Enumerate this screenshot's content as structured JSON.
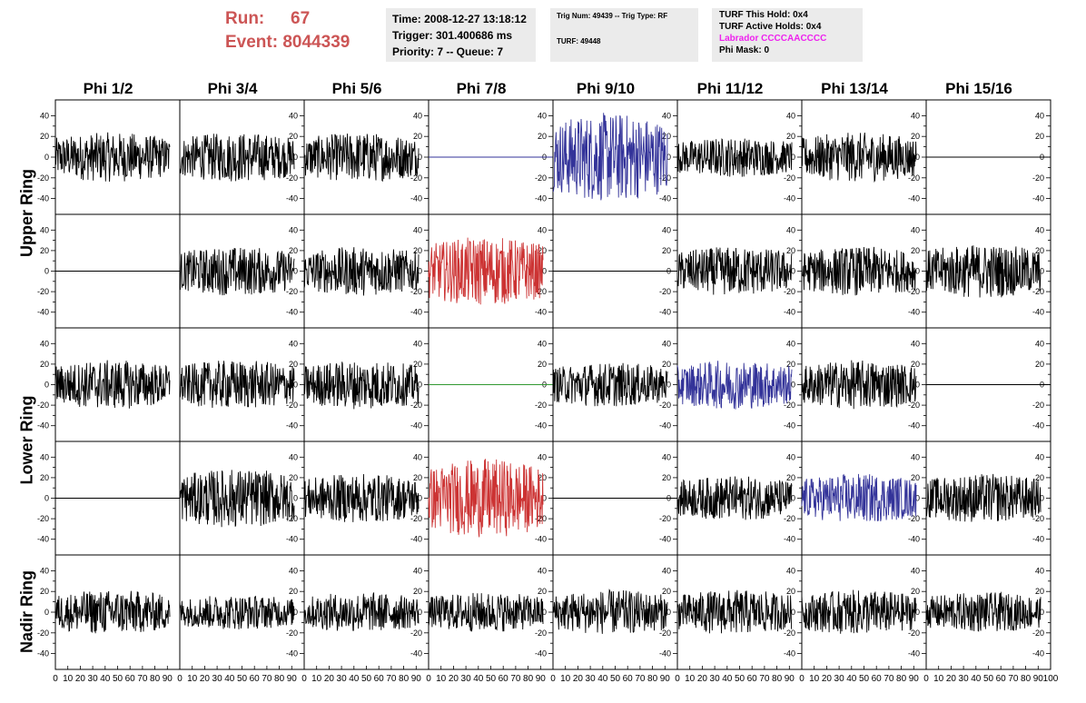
{
  "header": {
    "run_label": "Run:",
    "run_value": "67",
    "event_label": "Event:",
    "event_value": "8044339",
    "time": "Time: 2008-12-27 13:18:12",
    "trigger": "Trigger: 301.400686 ms",
    "priority": "Priority: 7 -- Queue: 7",
    "trig_num": "Trig Num: 49439 -- Trig Type: RF",
    "turf": "TURF: 49448",
    "turf_this_hold": "TURF This Hold: 0x4",
    "turf_active_holds": "TURF Active Holds: 0x4",
    "labrador": "Labrador CCCCAACCCC",
    "phi_mask": "Phi Mask: 0"
  },
  "colors": {
    "run_text": "#cc5555",
    "labrador_text": "#ee22ee",
    "info_bg": "#ebebeb",
    "trace_default": "#000000",
    "trace_blue": "#333399",
    "trace_red": "#cc3333",
    "trace_green": "#339933"
  },
  "columns": [
    "Phi 1/2",
    "Phi 3/4",
    "Phi 5/6",
    "Phi 7/8",
    "Phi 9/10",
    "Phi 11/12",
    "Phi 13/14",
    "Phi 15/16"
  ],
  "rings": [
    {
      "label": "Upper Ring",
      "rows": 2
    },
    {
      "label": "Lower Ring",
      "rows": 2
    },
    {
      "label": "Nadir Ring",
      "rows": 1
    }
  ],
  "chart_data": {
    "type": "line",
    "layout": "grid of 8 columns x 5 rows of waveform panels",
    "xlim": [
      0,
      100
    ],
    "ylim": [
      -50,
      50
    ],
    "x_ticks": [
      "0",
      "10",
      "20",
      "30",
      "40",
      "50",
      "60",
      "70",
      "80",
      "90",
      "100"
    ],
    "y_ticks": [
      "-40",
      "-20",
      "0",
      "20",
      "40"
    ],
    "panels": [
      [
        {
          "color": "black",
          "amplitude": 20,
          "flat": false
        },
        {
          "color": "black",
          "amplitude": 20,
          "flat": false
        },
        {
          "color": "black",
          "amplitude": 20,
          "flat": false
        },
        {
          "color": "blue",
          "amplitude": 0,
          "flat": true
        },
        {
          "color": "blue",
          "amplitude": 36,
          "flat": false
        },
        {
          "color": "black",
          "amplitude": 16,
          "flat": false
        },
        {
          "color": "black",
          "amplitude": 20,
          "flat": false
        },
        {
          "color": "black",
          "amplitude": 0,
          "flat": true
        }
      ],
      [
        {
          "color": "black",
          "amplitude": 0,
          "flat": true
        },
        {
          "color": "black",
          "amplitude": 20,
          "flat": false
        },
        {
          "color": "black",
          "amplitude": 20,
          "flat": false
        },
        {
          "color": "red",
          "amplitude": 28,
          "flat": false
        },
        {
          "color": "black",
          "amplitude": 0,
          "flat": true
        },
        {
          "color": "black",
          "amplitude": 20,
          "flat": false
        },
        {
          "color": "black",
          "amplitude": 20,
          "flat": false
        },
        {
          "color": "black",
          "amplitude": 22,
          "flat": false
        }
      ],
      [
        {
          "color": "black",
          "amplitude": 20,
          "flat": false
        },
        {
          "color": "black",
          "amplitude": 20,
          "flat": false
        },
        {
          "color": "black",
          "amplitude": 20,
          "flat": false
        },
        {
          "color": "green",
          "amplitude": 0,
          "flat": true
        },
        {
          "color": "black",
          "amplitude": 18,
          "flat": false
        },
        {
          "color": "blue",
          "amplitude": 20,
          "flat": false
        },
        {
          "color": "black",
          "amplitude": 20,
          "flat": false
        },
        {
          "color": "black",
          "amplitude": 0,
          "flat": true
        }
      ],
      [
        {
          "color": "black",
          "amplitude": 0,
          "flat": true
        },
        {
          "color": "black",
          "amplitude": 24,
          "flat": false
        },
        {
          "color": "black",
          "amplitude": 20,
          "flat": false
        },
        {
          "color": "red",
          "amplitude": 32,
          "flat": false
        },
        {
          "color": "black",
          "amplitude": 0,
          "flat": true
        },
        {
          "color": "black",
          "amplitude": 18,
          "flat": false
        },
        {
          "color": "blue",
          "amplitude": 20,
          "flat": false
        },
        {
          "color": "black",
          "amplitude": 20,
          "flat": false
        }
      ],
      [
        {
          "color": "black",
          "amplitude": 18,
          "flat": false
        },
        {
          "color": "black",
          "amplitude": 14,
          "flat": false
        },
        {
          "color": "black",
          "amplitude": 16,
          "flat": false
        },
        {
          "color": "black",
          "amplitude": 16,
          "flat": false
        },
        {
          "color": "black",
          "amplitude": 18,
          "flat": false
        },
        {
          "color": "black",
          "amplitude": 18,
          "flat": false
        },
        {
          "color": "black",
          "amplitude": 18,
          "flat": false
        },
        {
          "color": "black",
          "amplitude": 16,
          "flat": false
        }
      ]
    ]
  }
}
